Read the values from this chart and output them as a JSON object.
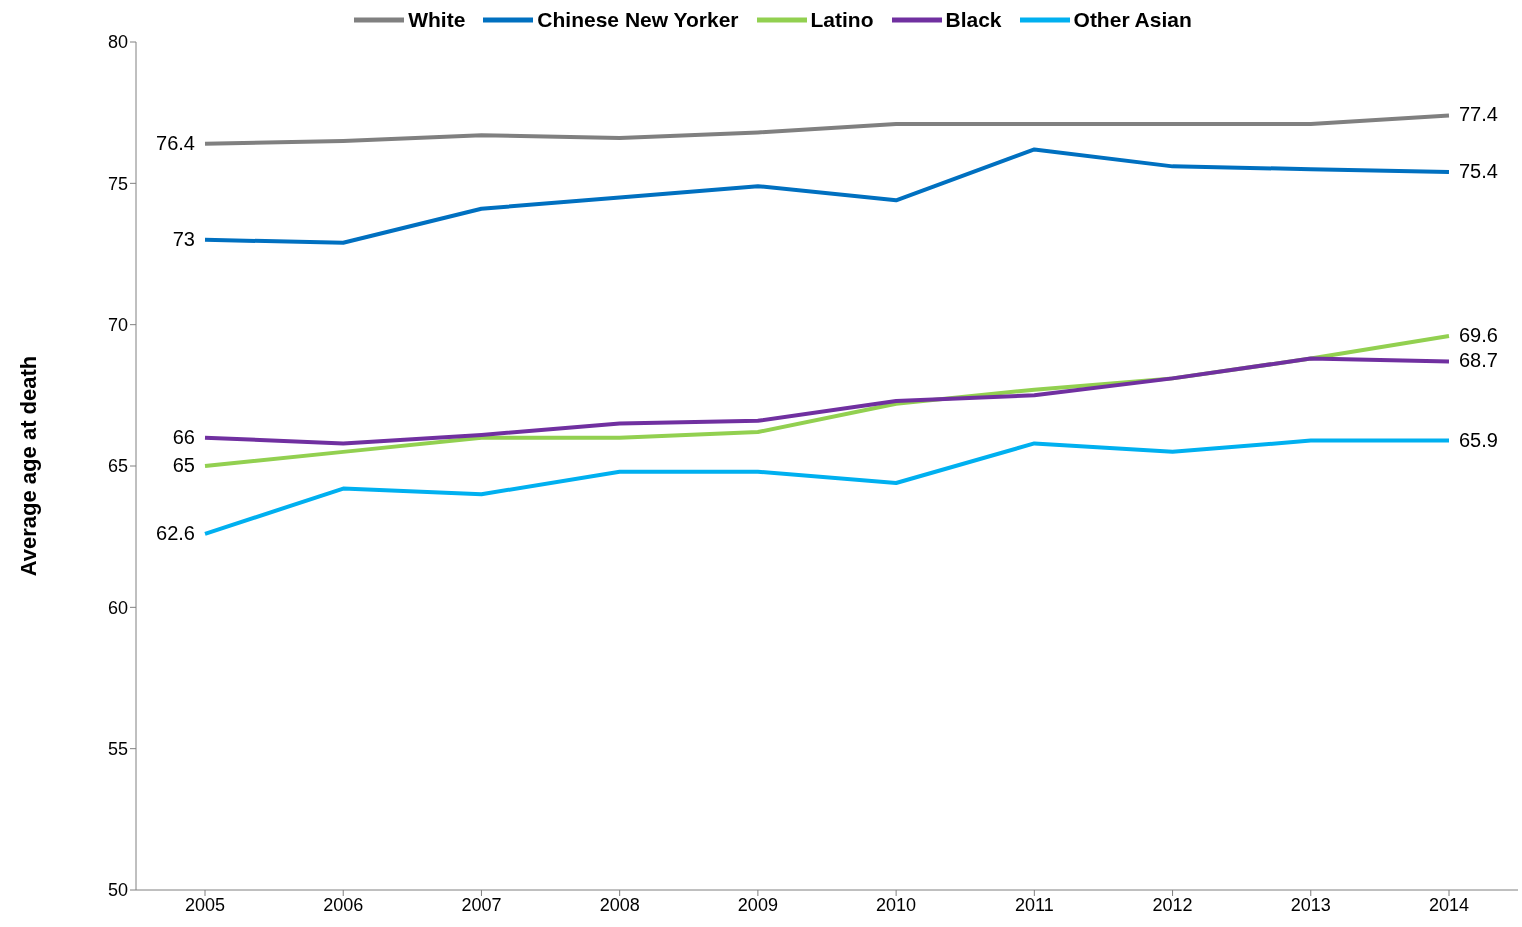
{
  "chart_data": {
    "type": "line",
    "ylabel": "Average age at death",
    "categories": [
      "2005",
      "2006",
      "2007",
      "2008",
      "2009",
      "2010",
      "2011",
      "2012",
      "2013",
      "2014"
    ],
    "ylim": [
      50,
      80
    ],
    "yticks": [
      50,
      55,
      60,
      65,
      70,
      75,
      80
    ],
    "grid": false,
    "legend": "top",
    "marker": "none",
    "line_style": "solid",
    "series": [
      {
        "name": "White",
        "color": "#808080",
        "values": [
          76.4,
          76.5,
          76.7,
          76.6,
          76.8,
          77.1,
          77.1,
          77.1,
          77.1,
          77.4
        ],
        "value_labels": [
          "76.4",
          null,
          null,
          null,
          null,
          null,
          null,
          null,
          null,
          "77.4"
        ]
      },
      {
        "name": "Chinese New Yorker",
        "color": "#0070c0",
        "values": [
          73,
          72.9,
          74.1,
          74.5,
          74.9,
          74.4,
          76.2,
          75.6,
          75.5,
          75.4
        ],
        "value_labels": [
          "73",
          null,
          null,
          null,
          null,
          null,
          null,
          null,
          null,
          "75.4"
        ]
      },
      {
        "name": "Latino",
        "color": "#92d050",
        "values": [
          65,
          65.5,
          66.0,
          66.0,
          66.2,
          67.2,
          67.7,
          68.1,
          68.8,
          69.6
        ],
        "value_labels": [
          "65",
          null,
          null,
          null,
          null,
          null,
          null,
          null,
          null,
          "69.6"
        ]
      },
      {
        "name": "Black",
        "color": "#7030a0",
        "values": [
          66,
          65.8,
          66.1,
          66.5,
          66.6,
          67.3,
          67.5,
          68.1,
          68.8,
          68.7
        ],
        "value_labels": [
          "66",
          null,
          null,
          null,
          null,
          null,
          null,
          null,
          null,
          "68.7"
        ]
      },
      {
        "name": "Other Asian",
        "color": "#00b0f0",
        "values": [
          62.6,
          64.2,
          64.0,
          64.8,
          64.8,
          64.4,
          65.8,
          65.5,
          65.9,
          65.9
        ],
        "value_labels": [
          "62.6",
          null,
          null,
          null,
          null,
          null,
          null,
          null,
          null,
          "65.9"
        ]
      }
    ]
  }
}
